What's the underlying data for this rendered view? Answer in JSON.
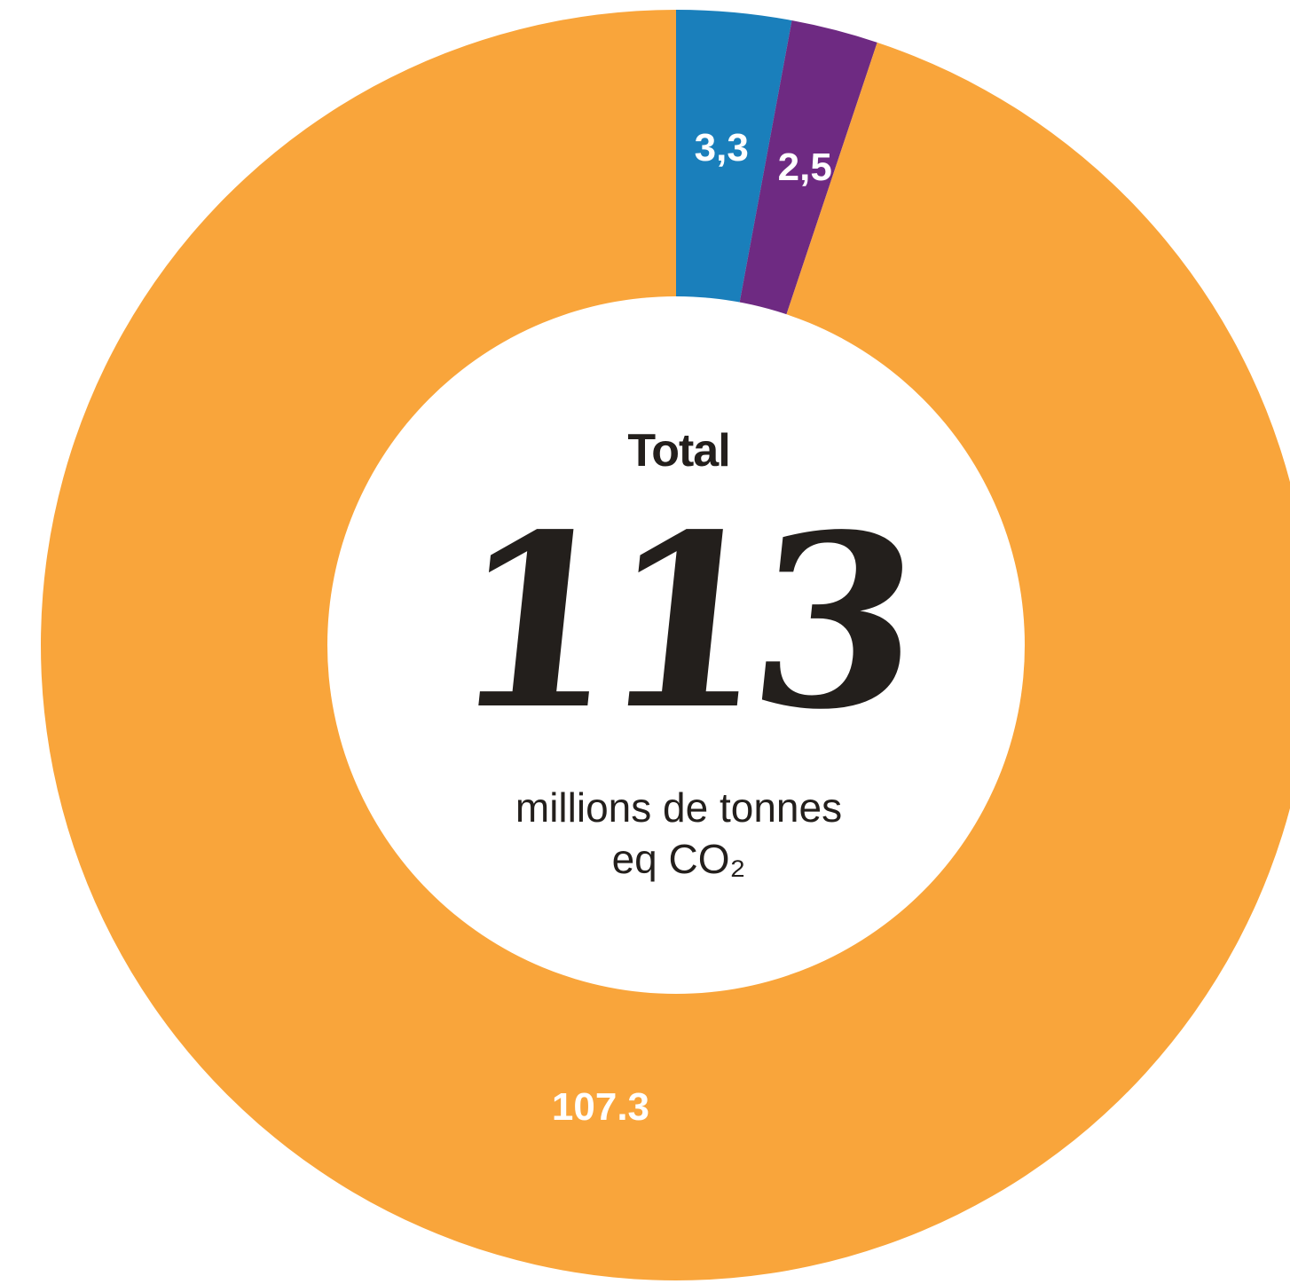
{
  "chart_data": {
    "type": "pie",
    "donut": true,
    "slices": [
      {
        "label": "3,3",
        "value": 3.3,
        "color": "#1a7fbb"
      },
      {
        "label": "2,5",
        "value": 2.5,
        "color": "#6e2a82"
      },
      {
        "label": "107.3",
        "value": 107.3,
        "color": "#f9a53b"
      }
    ]
  },
  "center": {
    "title": "Total",
    "value": "113",
    "unit_line1": "millions de tonnes",
    "unit_line2": "eq CO₂"
  }
}
